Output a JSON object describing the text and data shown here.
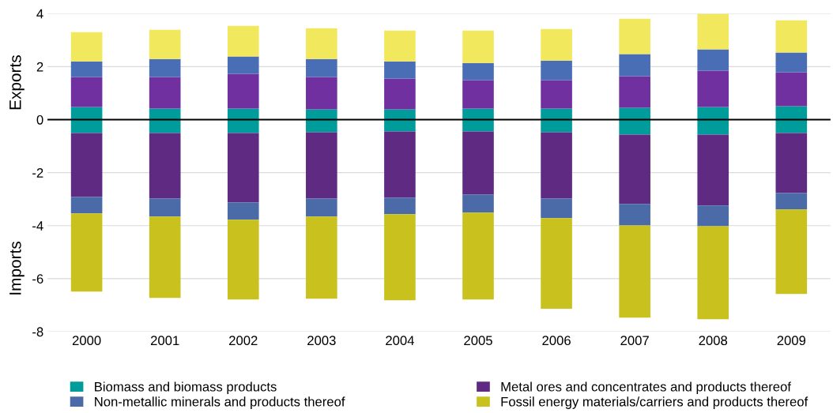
{
  "chart_data": {
    "type": "bar",
    "stacked": true,
    "categories": [
      "2000",
      "2001",
      "2002",
      "2003",
      "2004",
      "2005",
      "2006",
      "2007",
      "2008",
      "2009"
    ],
    "series": [
      {
        "color": "#009b9b",
        "values": [
          0.48,
          0.42,
          0.42,
          0.39,
          0.39,
          0.42,
          0.42,
          0.45,
          0.48,
          0.51
        ]
      },
      {
        "color": "#7030a0",
        "values": [
          1.13,
          1.19,
          1.31,
          1.22,
          1.16,
          1.07,
          1.07,
          1.19,
          1.37,
          1.28
        ]
      },
      {
        "color": "#4a6eb5",
        "values": [
          0.59,
          0.68,
          0.65,
          0.68,
          0.65,
          0.65,
          0.74,
          0.83,
          0.8,
          0.74
        ]
      },
      {
        "color": "#f2e85e",
        "values": [
          1.1,
          1.1,
          1.16,
          1.16,
          1.16,
          1.22,
          1.19,
          1.34,
          1.34,
          1.22
        ]
      },
      {
        "name": "Biomass and biomass products",
        "color": "#009b9b",
        "values": [
          -0.51,
          -0.51,
          -0.51,
          -0.48,
          -0.45,
          -0.45,
          -0.48,
          -0.57,
          -0.57,
          -0.51
        ]
      },
      {
        "name": "Metal ores and concentrates and products thereof",
        "color": "#5e2a82",
        "values": [
          -2.41,
          -2.47,
          -2.62,
          -2.5,
          -2.5,
          -2.38,
          -2.5,
          -2.61,
          -2.67,
          -2.26
        ]
      },
      {
        "name": "Non-metallic minerals and products thereof",
        "color": "#4a6aa8",
        "values": [
          -0.62,
          -0.68,
          -0.65,
          -0.68,
          -0.62,
          -0.68,
          -0.74,
          -0.81,
          -0.78,
          -0.62
        ]
      },
      {
        "name": "Fossil energy materials/carriers and products thereof",
        "color": "#c9c21e",
        "values": [
          -2.95,
          -3.07,
          -3.01,
          -3.1,
          -3.25,
          -3.28,
          -3.42,
          -3.48,
          -3.51,
          -3.19
        ]
      }
    ],
    "ylim": [
      -8,
      4
    ],
    "yticks": [
      -8,
      -6,
      -4,
      -2,
      0,
      2,
      4
    ],
    "grid": "y",
    "legend": "bottom",
    "ref_lines": [
      {
        "axis": "y",
        "value": 0,
        "color": "#000000"
      }
    ],
    "annotations": [
      "Exports",
      "Imports"
    ]
  }
}
